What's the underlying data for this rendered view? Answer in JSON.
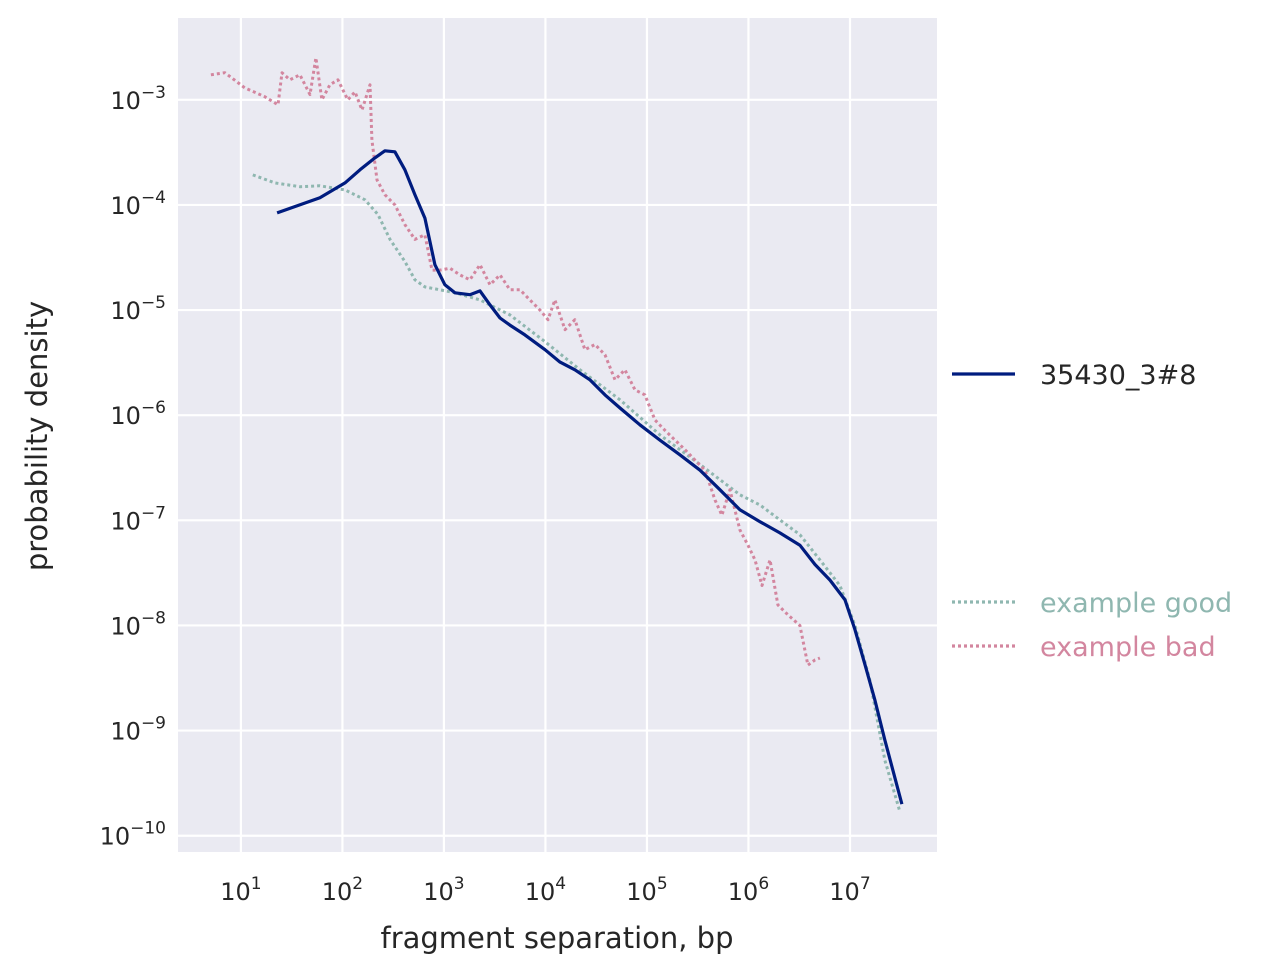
{
  "chart_data": {
    "type": "line",
    "xlabel": "fragment separation, bp",
    "ylabel": "probability density",
    "xscale": "log",
    "yscale": "log",
    "xlim": [
      2.4,
      72000000
    ],
    "ylim": [
      7e-11,
      0.006
    ],
    "x_tick_base": "10",
    "x_tick_exponents": [
      "1",
      "2",
      "3",
      "4",
      "5",
      "6",
      "7"
    ],
    "y_tick_base": "10",
    "y_tick_exponents": [
      "−3",
      "−4",
      "−5",
      "−6",
      "−7",
      "−8",
      "−9",
      "−10"
    ],
    "grid": true,
    "background_color": "#eaeaf2",
    "legend_placement": "outside-right",
    "series": [
      {
        "name": "35430_3#8",
        "color": "#001c7f",
        "style": "solid",
        "x": [
          22.7,
          60,
          106,
          149,
          209,
          262,
          329,
          413,
          518,
          650,
          815,
          1023,
          1283,
          1803,
          2264,
          2840,
          3565,
          4470,
          6280,
          9890,
          13900,
          19500,
          27400,
          38600,
          54200,
          85300,
          134000,
          211000,
          333000,
          524000,
          824000,
          1300000,
          2040000,
          3210000,
          4520000,
          6350000,
          8930000,
          11200000,
          14100000,
          17600000,
          22100000,
          32500000
        ],
        "y": [
          8.4e-05,
          0.000117,
          0.000162,
          0.000216,
          0.00028,
          0.000327,
          0.00032,
          0.000216,
          0.000125,
          7.5e-05,
          2.7e-05,
          1.74e-05,
          1.46e-05,
          1.4e-05,
          1.52e-05,
          1.12e-05,
          8.4e-06,
          7.2e-06,
          5.8e-06,
          4.2e-06,
          3.2e-06,
          2.7e-06,
          2.17e-06,
          1.56e-06,
          1.17e-06,
          8.1e-07,
          5.8e-07,
          4.2e-07,
          3e-07,
          1.95e-07,
          1.26e-07,
          9.7e-08,
          7.6e-08,
          5.8e-08,
          3.8e-08,
          2.7e-08,
          1.75e-08,
          9.1e-09,
          4.2e-09,
          1.95e-09,
          8.1e-10,
          2e-10
        ]
      },
      {
        "name": "example good",
        "color": "#8fb7b0",
        "style": "dotted",
        "x": [
          13.1,
          21.6,
          38.1,
          60,
          106,
          167,
          224,
          294,
          413,
          518,
          650,
          914,
          1283,
          2264,
          4470,
          9890,
          21900,
          54200,
          134000,
          333000,
          824000,
          1300000,
          2040000,
          3210000,
          5060000,
          7960000,
          11200000,
          15700000,
          22100000,
          31100000
        ],
        "y": [
          0.000193,
          0.000162,
          0.000149,
          0.000152,
          0.000139,
          0.000112,
          8.1e-05,
          4.7e-05,
          2.9e-05,
          1.94e-05,
          1.66e-05,
          1.56e-05,
          1.46e-05,
          1.25e-05,
          9e-06,
          5e-06,
          2.7e-06,
          1.4e-06,
          6.5e-07,
          3.4e-07,
          1.75e-07,
          1.4e-07,
          1.01e-07,
          7.3e-08,
          4.2e-08,
          2.4e-08,
          1e-08,
          3e-09,
          5.2e-10,
          1.68e-10
        ]
      },
      {
        "name": "example bad",
        "color": "#d3869f",
        "style": "dotted",
        "x": [
          5.06,
          6.95,
          10.9,
          17.2,
          23.2,
          25.4,
          30.4,
          38.1,
          47.9,
          54.8,
          62.8,
          75.3,
          90.3,
          113,
          133,
          156,
          187,
          195,
          219,
          262,
          329,
          413,
          518,
          650,
          762,
          914,
          1145,
          1438,
          1803,
          2264,
          2840,
          3565,
          4470,
          5610,
          7030,
          8830,
          10600,
          12400,
          15600,
          19500,
          24500,
          30800,
          38600,
          48400,
          60700,
          76200,
          95500,
          120000,
          150000,
          189000,
          237000,
          297000,
          373000,
          468000,
          548000,
          657000,
          824000,
          989000,
          1160000,
          1360000,
          1630000,
          1950000,
          2450000,
          3210000,
          3850000,
          4520000,
          5060000
        ],
        "y": [
          0.00173,
          0.00181,
          0.0013,
          0.00107,
          0.000896,
          0.00181,
          0.00155,
          0.00173,
          0.00112,
          0.00251,
          0.001,
          0.00139,
          0.00155,
          0.001,
          0.00119,
          0.0008,
          0.00139,
          0.000416,
          0.000173,
          0.000125,
          0.0001,
          6.5e-05,
          4.7e-05,
          5.2e-05,
          2.4e-05,
          2.4e-05,
          2.5e-05,
          2.16e-05,
          1.94e-05,
          2.7e-05,
          1.74e-05,
          2.16e-05,
          1.56e-05,
          1.56e-05,
          1.25e-05,
          1e-05,
          8.1e-06,
          1.25e-05,
          6.5e-06,
          8.1e-06,
          4.2e-06,
          4.7e-06,
          3.75e-06,
          2.17e-06,
          2.7e-06,
          1.74e-06,
          1.56e-06,
          9e-07,
          7.2e-07,
          5.8e-07,
          4.7e-07,
          3.75e-07,
          3e-07,
          1.56e-07,
          1.12e-07,
          1.95e-07,
          8.1e-08,
          5.8e-08,
          4.2e-08,
          2.4e-08,
          4.2e-08,
          1.57e-08,
          1.26e-08,
          1e-08,
          4.2e-09,
          4.7e-09,
          4.9e-09
        ]
      }
    ]
  }
}
